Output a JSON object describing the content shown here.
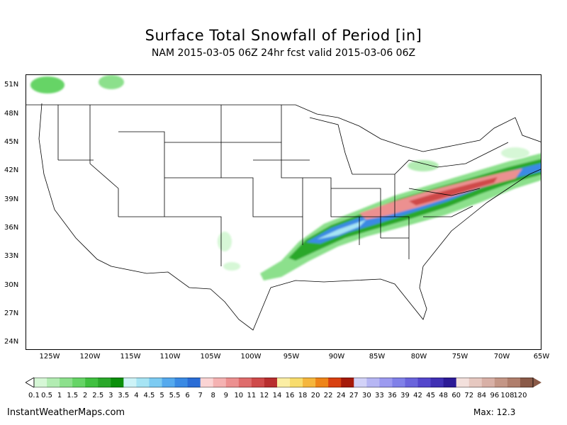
{
  "header": {
    "title": "Surface Total Snowfall of Period [in]",
    "subtitle": "NAM 2015-03-05 06Z 24hr fcst valid 2015-03-06 06Z"
  },
  "axes": {
    "latitudes": [
      "51N",
      "48N",
      "45N",
      "42N",
      "39N",
      "36N",
      "33N",
      "30N",
      "27N",
      "24N"
    ],
    "longitudes": [
      "125W",
      "120W",
      "115W",
      "110W",
      "105W",
      "100W",
      "95W",
      "90W",
      "85W",
      "80W",
      "75W",
      "70W",
      "65W"
    ]
  },
  "colorbar": {
    "labels": [
      "0.1",
      "0.5",
      "1",
      "1.5",
      "2",
      "2.5",
      "3",
      "3.5",
      "4",
      "4.5",
      "5",
      "5.5",
      "6",
      "7",
      "8",
      "9",
      "10",
      "11",
      "12",
      "14",
      "16",
      "18",
      "20",
      "22",
      "24",
      "27",
      "30",
      "33",
      "36",
      "39",
      "42",
      "45",
      "48",
      "60",
      "72",
      "84",
      "96",
      "108",
      "120"
    ],
    "colors": [
      "#d6f7d6",
      "#b2ecb2",
      "#8ce08c",
      "#66d466",
      "#40c040",
      "#2aa82a",
      "#0b8f0b",
      "#cdf3f7",
      "#a6e4f4",
      "#7ccbf2",
      "#55aaee",
      "#3a8ae4",
      "#2a6dd6",
      "#fbd4d4",
      "#f5b2b2",
      "#ec9090",
      "#df6c6c",
      "#cf4a4a",
      "#b82e2e",
      "#fbeea4",
      "#f8dc6c",
      "#f5b63c",
      "#ee8418",
      "#d84010",
      "#a51a0a",
      "#d2d2f8",
      "#b6b6f4",
      "#9c9af0",
      "#8080e8",
      "#6a64dc",
      "#5446cc",
      "#4030b4",
      "#2c1a96",
      "#f3e0dc",
      "#e6c8c0",
      "#d8b0a6",
      "#c49686",
      "#b07e6c",
      "#8a5a48"
    ]
  },
  "footer": {
    "site": "InstantWeatherMaps.com",
    "max_label": "Max:  12.3"
  }
}
